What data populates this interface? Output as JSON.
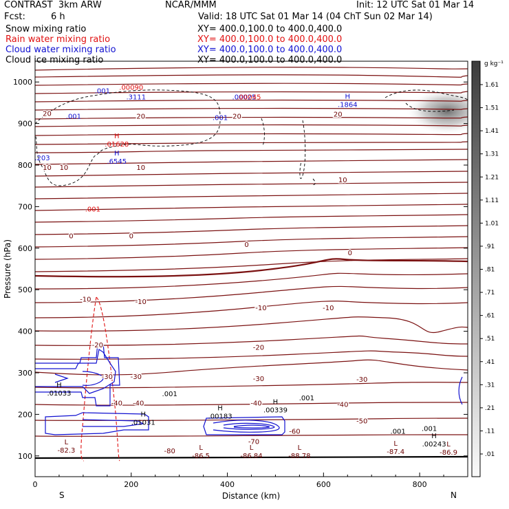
{
  "header": {
    "model": "CONTRAST  3km ARW",
    "org": "NCAR/MMM",
    "init": "Init: 12 UTC Sat 01 Mar 14",
    "fcst_label": "Fcst:",
    "fcst_value": "6 h",
    "valid": "Valid: 18 UTC Sat 01 Mar 14 (04 ChT Sun 02 Mar 14)"
  },
  "fields": [
    {
      "label": "Snow mixing ratio",
      "xy": "XY= 400.0,100.0 to 400.0,400.0",
      "color": "#000000"
    },
    {
      "label": "Rain water mixing ratio",
      "xy": "XY= 400.0,100.0 to 400.0,400.0",
      "color": "#e01010"
    },
    {
      "label": "Cloud water mixing ratio",
      "xy": "XY= 400.0,100.0 to 400.0,400.0",
      "color": "#1010d0"
    },
    {
      "label": "Cloud ice mixing ratio",
      "xy": "XY= 400.0,100.0 to 400.0,400.0",
      "color": "#000000"
    }
  ],
  "chart_data": {
    "type": "contour-cross-section",
    "xlabel": "Distance (km)",
    "ylabel": "Pressure (hPa)",
    "xlim": [
      0,
      900
    ],
    "ylim": [
      1050,
      50
    ],
    "xticks": [
      "0",
      "200",
      "400",
      "600",
      "800"
    ],
    "xtick_values": [
      0,
      200,
      400,
      600,
      800
    ],
    "yticks": [
      "100",
      "200",
      "300",
      "400",
      "500",
      "600",
      "700",
      "800",
      "900",
      "1000"
    ],
    "ytick_values": [
      100,
      200,
      300,
      400,
      500,
      600,
      700,
      800,
      900,
      1000
    ],
    "end_labels": {
      "left": "S",
      "right": "N"
    },
    "colorbar": {
      "unit": "g kg⁻¹",
      "levels": [
        "1.61",
        "1.51",
        "1.41",
        "1.31",
        "1.21",
        "1.11",
        "1.01",
        ".91",
        ".81",
        ".71",
        ".61",
        ".51",
        ".41",
        ".31",
        ".21",
        ".11",
        ".01"
      ],
      "level_values": [
        1.61,
        1.51,
        1.41,
        1.31,
        1.21,
        1.11,
        1.01,
        0.91,
        0.81,
        0.71,
        0.61,
        0.51,
        0.41,
        0.31,
        0.21,
        0.11,
        0.01
      ]
    },
    "temperature_labels": [
      {
        "text": "-80",
        "x": 280,
        "p": 113
      },
      {
        "text": "-70",
        "x": 455,
        "p": 135
      },
      {
        "text": "-60",
        "x": 540,
        "p": 160
      },
      {
        "text": "-50",
        "x": 680,
        "p": 185
      },
      {
        "text": "-40",
        "x": 170,
        "p": 228
      },
      {
        "text": "-40",
        "x": 215,
        "p": 228
      },
      {
        "text": "-40",
        "x": 460,
        "p": 228
      },
      {
        "text": "-40",
        "x": 640,
        "p": 225
      },
      {
        "text": "-30",
        "x": 150,
        "p": 292
      },
      {
        "text": "-30",
        "x": 210,
        "p": 292
      },
      {
        "text": "-30",
        "x": 465,
        "p": 287
      },
      {
        "text": "-30",
        "x": 680,
        "p": 285
      },
      {
        "text": "-20",
        "x": 130,
        "p": 368
      },
      {
        "text": "-20",
        "x": 465,
        "p": 362
      },
      {
        "text": "-10",
        "x": 105,
        "p": 478
      },
      {
        "text": "-10",
        "x": 220,
        "p": 472
      },
      {
        "text": "-10",
        "x": 470,
        "p": 457
      },
      {
        "text": "-10",
        "x": 610,
        "p": 457
      },
      {
        "text": "0",
        "x": 75,
        "p": 630
      },
      {
        "text": "0",
        "x": 200,
        "p": 630
      },
      {
        "text": "0",
        "x": 440,
        "p": 610
      },
      {
        "text": "0",
        "x": 655,
        "p": 590
      },
      {
        "text": "10",
        "x": 25,
        "p": 795
      },
      {
        "text": "10",
        "x": 60,
        "p": 795
      },
      {
        "text": "10",
        "x": 220,
        "p": 795
      },
      {
        "text": "10",
        "x": 640,
        "p": 765
      },
      {
        "text": "20",
        "x": 25,
        "p": 925
      },
      {
        "text": "20",
        "x": 220,
        "p": 918
      },
      {
        "text": "20",
        "x": 420,
        "p": 918
      },
      {
        "text": "20",
        "x": 630,
        "p": 923
      }
    ],
    "extrema": [
      {
        "kind": "L",
        "value": "-82.3",
        "x": 65,
        "p": 113,
        "color": "#6b0000"
      },
      {
        "kind": "L",
        "value": "-86.5",
        "x": 345,
        "p": 100,
        "color": "#6b0000"
      },
      {
        "kind": "L",
        "value": "-86.84",
        "x": 450,
        "p": 100,
        "color": "#6b0000"
      },
      {
        "kind": "L",
        "value": "-88.78",
        "x": 550,
        "p": 100,
        "color": "#6b0000"
      },
      {
        "kind": "L",
        "value": "-87.4",
        "x": 750,
        "p": 110,
        "color": "#6b0000"
      },
      {
        "kind": "L",
        "value": "-86.9",
        "x": 860,
        "p": 108,
        "color": "#6b0000"
      },
      {
        "kind": "H",
        "value": ".01031",
        "x": 225,
        "p": 180,
        "color": "#000000"
      },
      {
        "kind": "H",
        "value": ".00183",
        "x": 385,
        "p": 195,
        "color": "#000000"
      },
      {
        "kind": "H",
        "value": ".00339",
        "x": 500,
        "p": 210,
        "color": "#000000"
      },
      {
        "kind": "H",
        "value": ".01033",
        "x": 50,
        "p": 250,
        "color": "#000000"
      },
      {
        "kind": "H",
        "value": ".00243",
        "x": 830,
        "p": 128,
        "color": "#000000"
      },
      {
        "kind": "H",
        "value": ".6545",
        "x": 170,
        "p": 808,
        "color": "#1010d0"
      },
      {
        "kind": "H",
        "value": ".01628",
        "x": 170,
        "p": 850,
        "color": "#e01010"
      },
      {
        "kind": "H",
        "value": ".1864",
        "x": 650,
        "p": 945,
        "color": "#1010d0"
      }
    ],
    "plain_labels": [
      {
        "text": ".001",
        "x": 280,
        "p": 250,
        "color": "#000000"
      },
      {
        "text": ".001",
        "x": 565,
        "p": 240,
        "color": "#000000"
      },
      {
        "text": ".001",
        "x": 755,
        "p": 160,
        "color": "#000000"
      },
      {
        "text": ".001",
        "x": 820,
        "p": 167,
        "color": "#000000"
      },
      {
        "text": ".001",
        "x": 120,
        "p": 695,
        "color": "#e01010"
      },
      {
        "text": ".203",
        "x": 15,
        "p": 818,
        "color": "#1010d0"
      },
      {
        "text": ".001",
        "x": 80,
        "p": 918,
        "color": "#1010d0"
      },
      {
        "text": ".001",
        "x": 140,
        "p": 980,
        "color": "#1010d0"
      },
      {
        "text": ".3111",
        "x": 210,
        "p": 965,
        "color": "#1010d0"
      },
      {
        "text": ".00090",
        "x": 200,
        "p": 988,
        "color": "#e01010"
      },
      {
        "text": ".001",
        "x": 385,
        "p": 915,
        "color": "#1010d0"
      },
      {
        "text": ".00025",
        "x": 435,
        "p": 965,
        "color": "#1010d0"
      },
      {
        "text": ".00045",
        "x": 445,
        "p": 965,
        "color": "#e01010"
      }
    ]
  }
}
